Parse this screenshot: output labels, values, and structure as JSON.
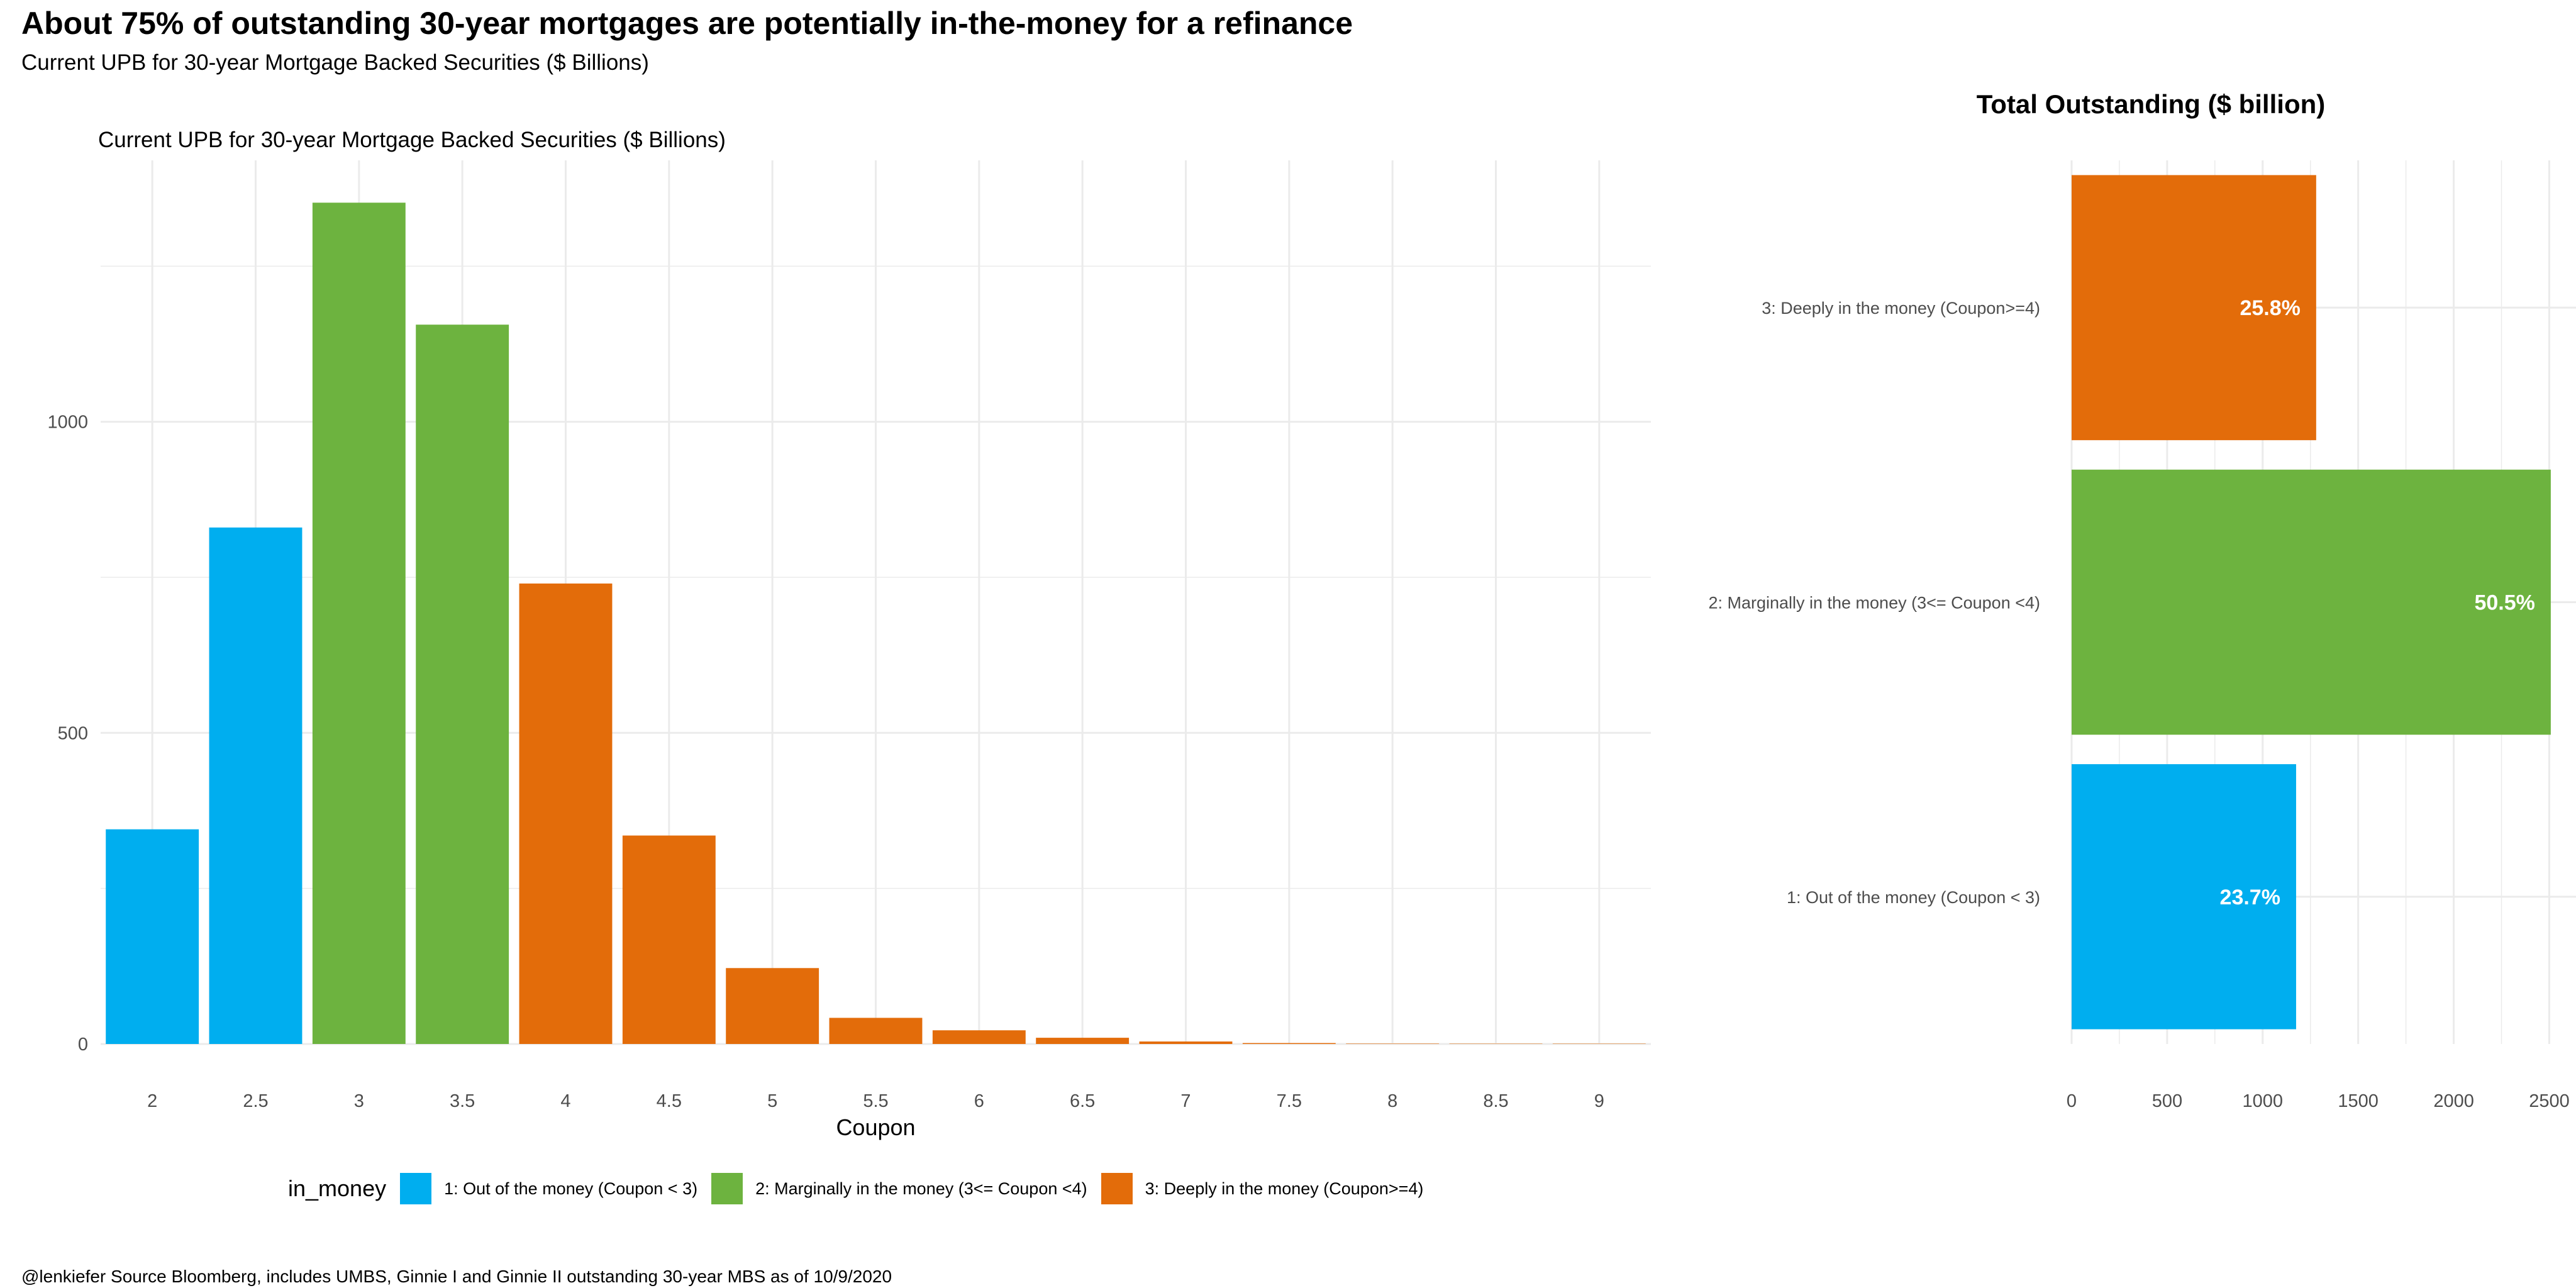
{
  "title": "About 75% of outstanding 30-year mortgages are potentially in-the-money for a refinance",
  "subtitle": "Current UPB for 30-year Mortgage Backed Securities ($ Billions)",
  "caption": "@lenkiefer Source Bloomberg, includes UMBS, Ginnie I and Ginnie II outstanding 30-year MBS as of 10/9/2020",
  "colors": {
    "out_of_money": "#00AEEF",
    "marginal": "#6DB33F",
    "deep": "#E36C0A",
    "grid": "#EBEBEB"
  },
  "legend": {
    "title": "in_money",
    "items": [
      {
        "label": "1: Out of the money (Coupon < 3)",
        "color": "#00AEEF"
      },
      {
        "label": "2: Marginally in the money (3<= Coupon <4)",
        "color": "#6DB33F"
      },
      {
        "label": "3: Deeply in the money (Coupon>=4)",
        "color": "#E36C0A"
      }
    ]
  },
  "chart_data": [
    {
      "type": "bar",
      "title": "Current UPB for 30-year Mortgage Backed Securities ($ Billions)",
      "xlabel": "Coupon",
      "ylabel": "",
      "categories": [
        "2",
        "2.5",
        "3",
        "3.5",
        "4",
        "4.5",
        "5",
        "5.5",
        "6",
        "6.5",
        "7",
        "7.5",
        "8",
        "8.5",
        "9"
      ],
      "values": [
        345,
        830,
        1352,
        1156,
        740,
        335,
        122,
        42,
        22,
        10,
        4,
        1.5,
        0.6,
        0.3,
        0.1
      ],
      "groups": [
        1,
        1,
        2,
        2,
        3,
        3,
        3,
        3,
        3,
        3,
        3,
        3,
        3,
        3,
        3
      ],
      "ylim": [
        0,
        1420
      ],
      "yticks": [
        0,
        500,
        1000
      ],
      "grid": true
    },
    {
      "type": "bar",
      "orientation": "horizontal",
      "title": "Total Outstanding ($ billion)",
      "categories": [
        "3: Deeply in the money (Coupon>=4)",
        "2: Marginally in the money (3<= Coupon <4)",
        "1: Out of the money (Coupon < 3)"
      ],
      "values": [
        1280,
        2508,
        1175
      ],
      "labels": [
        "25.8%",
        "50.5%",
        "23.7%"
      ],
      "groups": [
        3,
        2,
        1
      ],
      "xlim": [
        0,
        2640
      ],
      "xticks": [
        0,
        500,
        1000,
        1500,
        2000,
        2500
      ],
      "grid": true
    }
  ]
}
